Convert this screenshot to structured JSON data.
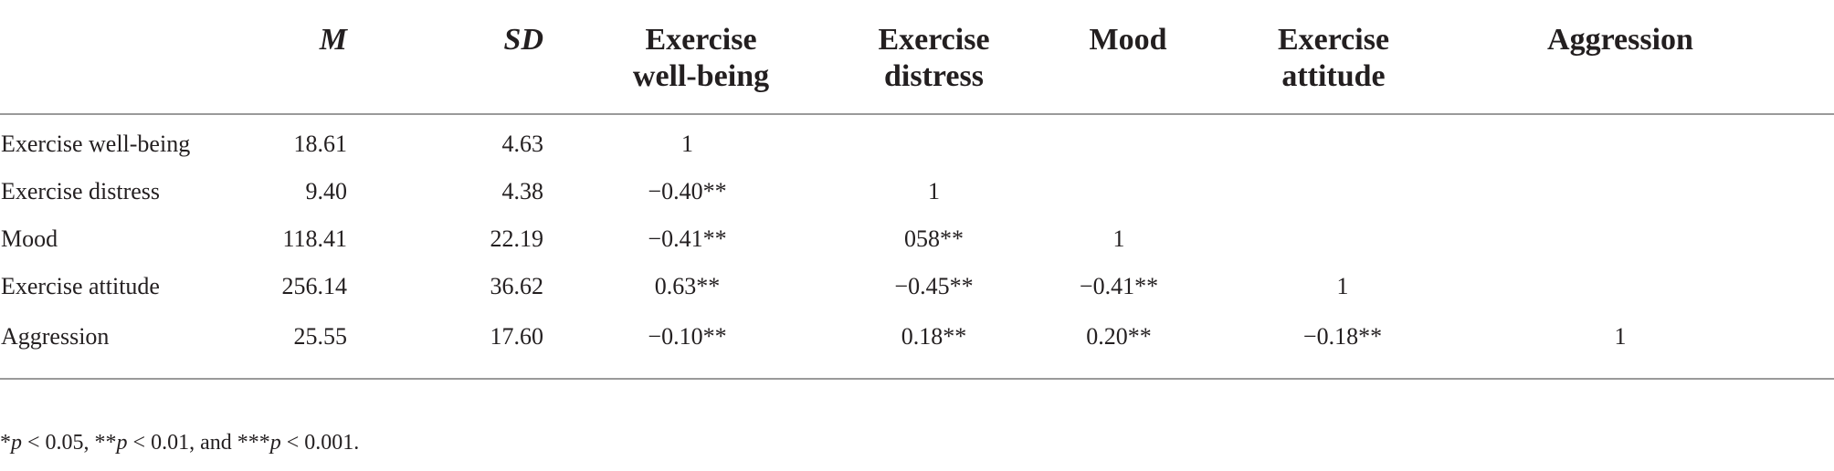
{
  "table": {
    "headers": {
      "label": "",
      "m": "M",
      "sd": "SD",
      "c1_line1": "Exercise",
      "c1_line2": "well-being",
      "c2_line1": "Exercise",
      "c2_line2": "distress",
      "c3_line1": "Mood",
      "c3_line2": "",
      "c4_line1": "Exercise",
      "c4_line2": "attitude",
      "c5_line1": "Aggression",
      "c5_line2": ""
    },
    "rows": [
      {
        "label": "Exercise well-being",
        "m": "18.61",
        "sd": "4.63",
        "c1": "1",
        "c2": "",
        "c3": "",
        "c4": "",
        "c5": ""
      },
      {
        "label": "Exercise distress",
        "m": "9.40",
        "sd": "4.38",
        "c1": "−0.40**",
        "c2": "1",
        "c3": "",
        "c4": "",
        "c5": ""
      },
      {
        "label": "Mood",
        "m": "118.41",
        "sd": "22.19",
        "c1": "−0.41**",
        "c2": "058**",
        "c3": "1",
        "c4": "",
        "c5": ""
      },
      {
        "label": "Exercise attitude",
        "m": "256.14",
        "sd": "36.62",
        "c1": "0.63**",
        "c2": "−0.45**",
        "c3": "−0.41**",
        "c4": "1",
        "c5": ""
      },
      {
        "label": "Aggression",
        "m": "25.55",
        "sd": "17.60",
        "c1": "−0.10**",
        "c2": "0.18**",
        "c3": "0.20**",
        "c4": "−0.18**",
        "c5": "1"
      }
    ]
  },
  "footnote": {
    "part1_mark": "*",
    "part1_p": "p",
    "part1_rest": " < 0.05, ",
    "part2_mark": "**",
    "part2_p": "p",
    "part2_rest": " < 0.01, and ",
    "part3_mark": "***",
    "part3_p": "p",
    "part3_rest": " < 0.001."
  }
}
